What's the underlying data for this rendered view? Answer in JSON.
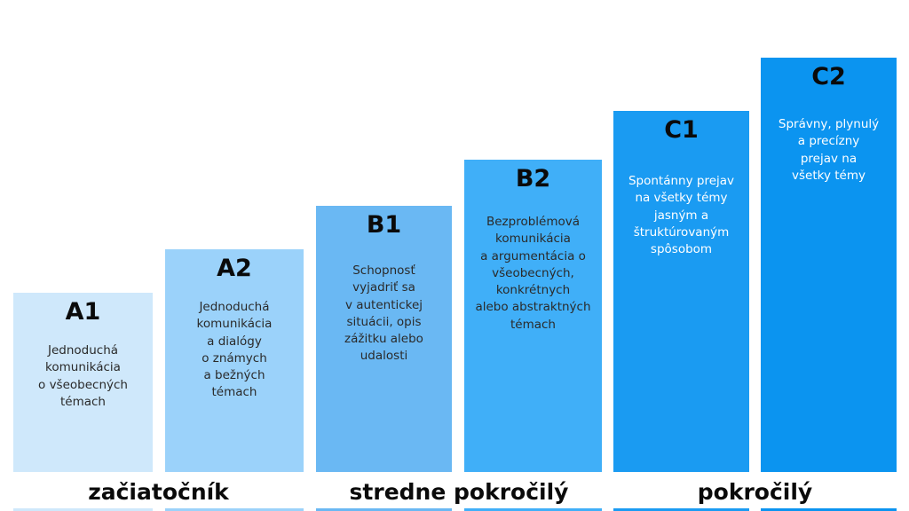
{
  "levels": [
    {
      "code": "A1",
      "description": "Jednoduchá\nkomunikácia\no všeobecných\ntémach",
      "color": "#cfe8fb"
    },
    {
      "code": "A2",
      "description": "Jednoduchá\nkomunikácia\na dialógy\no známych\na bežných\ntémach",
      "color": "#9bd2fa"
    },
    {
      "code": "B1",
      "description": "Schopnosť\nvyjadriť sa\nv autentickej\nsituácii, opis\nzážitku alebo\nudalosti",
      "color": "#6ab8f3"
    },
    {
      "code": "B2",
      "description": "Bezproblémová\nkomunikácia\na argumentácia o\nvšeobecných,\nkonkrétnych\nalebo abstraktných\ntémach",
      "color": "#40aff8"
    },
    {
      "code": "C1",
      "description": "Spontánny prejav\nna všetky témy\njasným a\nštruktúrovaným\nspôsobom",
      "color": "#1a9bf2"
    },
    {
      "code": "C2",
      "description": "Správny, plynulý\na precízny\nprejav na\nvšetky témy",
      "color": "#0b94f0"
    }
  ],
  "stages": [
    {
      "label": "začiatočník"
    },
    {
      "label": "stredne pokročilý"
    },
    {
      "label": "pokročilý"
    }
  ]
}
